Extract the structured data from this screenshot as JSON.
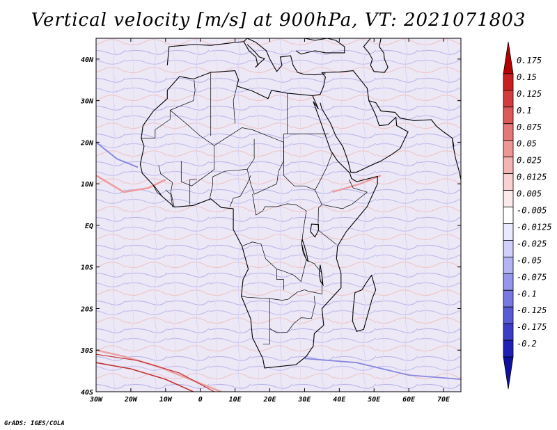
{
  "title": "Vertical velocity [m/s] at 900hPa, VT: 2021071803",
  "credit": "GrADS: IGES/COLA",
  "map": {
    "lon_range": [
      -30,
      75
    ],
    "lat_range": [
      -40,
      45
    ],
    "x_tick_values": [
      -30,
      -20,
      -10,
      0,
      10,
      20,
      30,
      40,
      50,
      60,
      70
    ],
    "x_tick_labels": [
      "30W",
      "20W",
      "10W",
      "0",
      "10E",
      "20E",
      "30E",
      "40E",
      "50E",
      "60E",
      "70E"
    ],
    "y_tick_values": [
      40,
      30,
      20,
      10,
      0,
      -10,
      -20,
      -30,
      -40
    ],
    "y_tick_labels": [
      "40N",
      "30N",
      "20N",
      "10N",
      "EQ",
      "10S",
      "20S",
      "30S",
      "40S"
    ]
  },
  "colorbar": {
    "labels": [
      "0.175",
      "0.15",
      "0.125",
      "0.1",
      "0.075",
      "0.05",
      "0.025",
      "0.0125",
      "0.005",
      "-0.005",
      "-0.0125",
      "-0.025",
      "-0.05",
      "-0.075",
      "-0.1",
      "-0.125",
      "-0.175",
      "-0.2"
    ],
    "colors": [
      "#b40000",
      "#c82020",
      "#d23c3c",
      "#dc5a5a",
      "#e47878",
      "#ec9696",
      "#f2b4b4",
      "#f8d2d2",
      "#fceaea",
      "#ffffff",
      "#eaeaff",
      "#d0d0fa",
      "#b4b4f2",
      "#9696ea",
      "#7878e0",
      "#5a5ad4",
      "#3c3cc6",
      "#2020b4",
      "#1010a0"
    ]
  },
  "colors": {
    "coast": "#000000",
    "water_tint": "#ece8f6",
    "pos_tint": "#e07070",
    "neg_tint": "#8080e0"
  }
}
